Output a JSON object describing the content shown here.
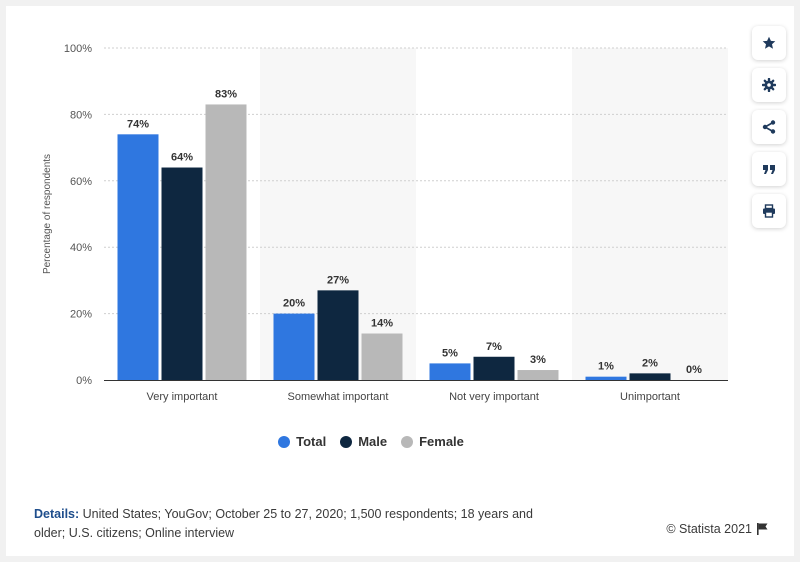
{
  "chart_data": {
    "type": "bar",
    "title": "",
    "xlabel": "",
    "ylabel": "Percentage of respondents",
    "ylim": [
      0,
      100
    ],
    "yticks": [
      "0%",
      "20%",
      "40%",
      "60%",
      "80%",
      "100%"
    ],
    "categories": [
      "Very important",
      "Somewhat important",
      "Not very important",
      "Unimportant"
    ],
    "series": [
      {
        "name": "Total",
        "values": [
          74,
          20,
          5,
          1
        ],
        "labels": [
          "74%",
          "20%",
          "5%",
          "1%"
        ],
        "color": "#2f77e0"
      },
      {
        "name": "Male",
        "values": [
          64,
          27,
          7,
          2
        ],
        "labels": [
          "64%",
          "27%",
          "7%",
          "2%"
        ],
        "color": "#0e2740"
      },
      {
        "name": "Female",
        "values": [
          83,
          14,
          3,
          0
        ],
        "labels": [
          "83%",
          "14%",
          "3%",
          "0%"
        ],
        "color": "#b8b8b8"
      }
    ],
    "grid": true,
    "legend": "bottom"
  },
  "details": {
    "label": "Details:",
    "text": "United States; YouGov; October 25 to 27, 2020; 1,500 respondents; 18 years and older; U.S. citizens; Online interview"
  },
  "copyright": "© Statista 2021",
  "sidebar_icons": [
    "star-icon",
    "gear-icon",
    "share-icon",
    "quote-icon",
    "print-icon"
  ],
  "colors": {
    "icon": "#1f3a5c",
    "band": "#f7f7f7"
  }
}
